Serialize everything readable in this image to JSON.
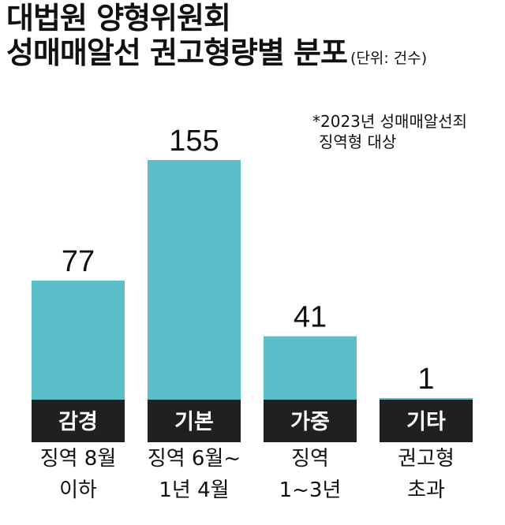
{
  "title_line1": "대법원 양형위원회",
  "title_line2": "성매매알선 권고형량별 분포",
  "unit": "(단위: 건수)",
  "note_line1": "*2023년 성매매알선죄",
  "note_line2": "징역형 대상",
  "colors": {
    "bar": "#5bbfca",
    "label_band": "#221f1f",
    "text": "#111111"
  },
  "chart_data": {
    "type": "bar",
    "categories": [
      "감경",
      "기본",
      "가중",
      "기타"
    ],
    "sublabels": [
      [
        "징역 8월",
        "이하"
      ],
      [
        "징역 6월~",
        "1년 4월"
      ],
      [
        "징역",
        "1~3년"
      ],
      [
        "권고형",
        "초과"
      ]
    ],
    "values": [
      77,
      155,
      41,
      1
    ],
    "value_labels": [
      "77",
      "155",
      "41",
      "1"
    ],
    "ylim": [
      0,
      155
    ]
  }
}
